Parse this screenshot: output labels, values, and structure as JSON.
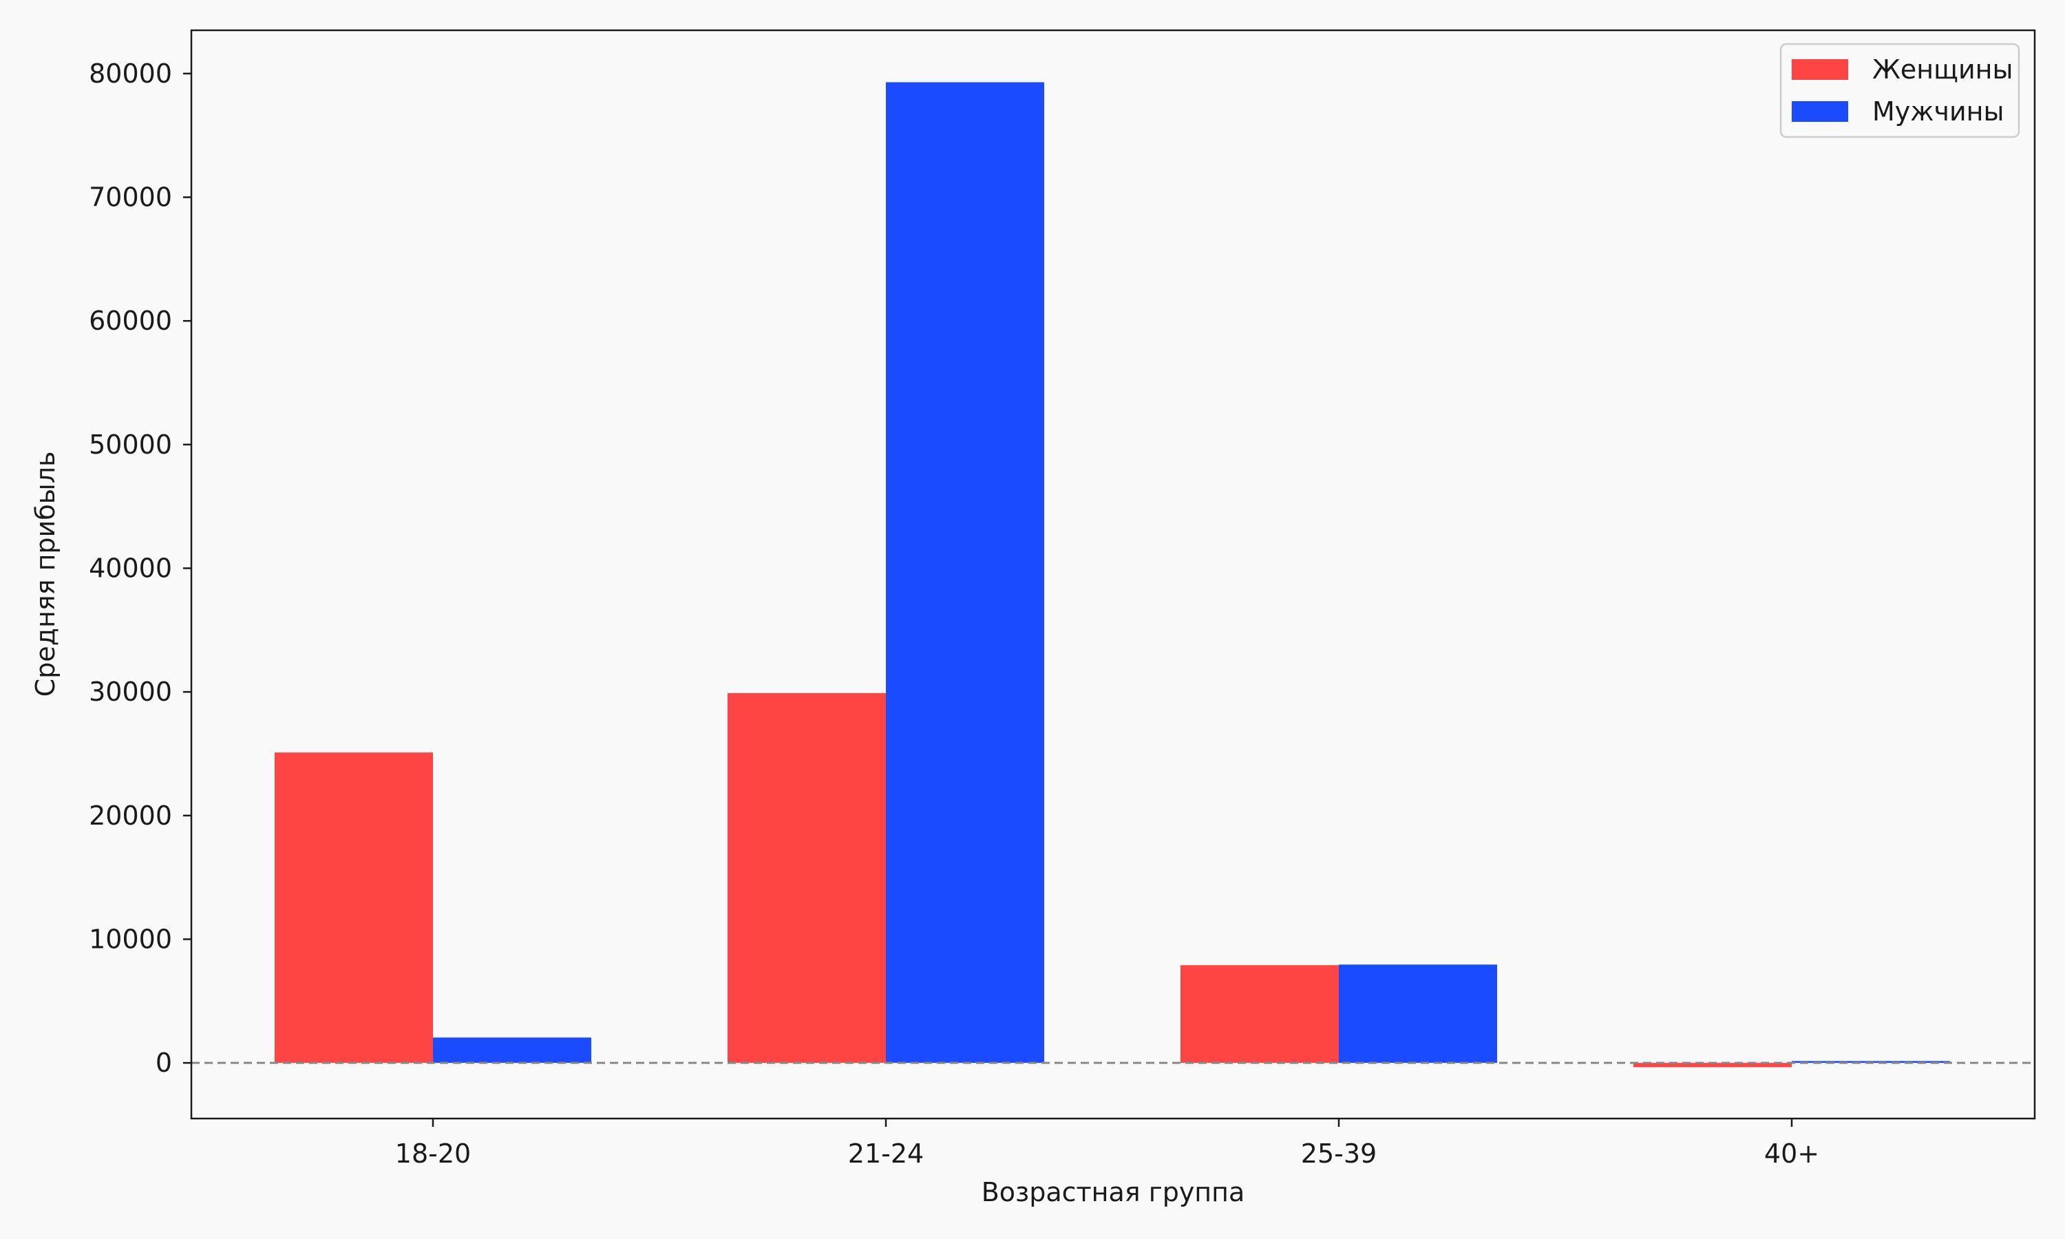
{
  "chart_data": {
    "type": "bar",
    "title": "",
    "xlabel": "Возрастная группа",
    "ylabel": "Средняя прибыль",
    "categories": [
      "18-20",
      "21-24",
      "25-39",
      "40+"
    ],
    "series": [
      {
        "name": "Женщины",
        "color": "#ff4444",
        "values": [
          25100,
          29900,
          7900,
          -350
        ]
      },
      {
        "name": "Мужчины",
        "color": "#1a4bff",
        "values": [
          2050,
          79300,
          7950,
          150
        ]
      }
    ],
    "ylim": [
      -4500,
      83500
    ],
    "yticks": [
      0,
      10000,
      20000,
      30000,
      40000,
      50000,
      60000,
      70000,
      80000
    ],
    "zero_line": {
      "style": "dashed",
      "color": "#888888"
    },
    "legend": {
      "position": "top-right"
    },
    "grid": false
  }
}
